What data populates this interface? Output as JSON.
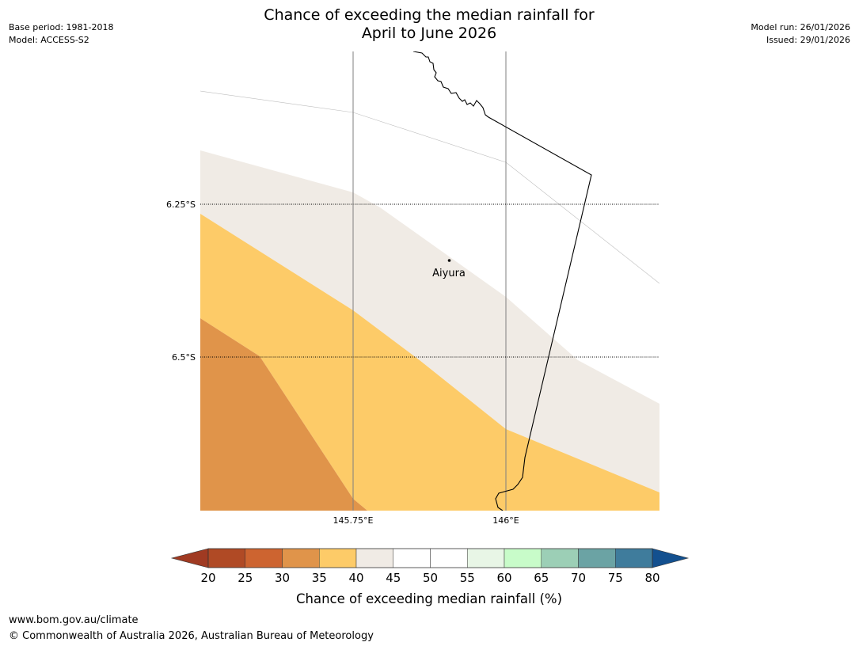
{
  "header": {
    "title_line1": "Chance of exceeding the median rainfall for",
    "title_line2": "April to June 2026",
    "base_period": "Base period: 1981-2018",
    "model": "Model: ACCESS-S2",
    "model_run": "Model run: 26/01/2026",
    "issued": "Issued: 29/01/2026"
  },
  "map": {
    "latitudes": [
      "6.25°S",
      "6.5°S"
    ],
    "longitudes": [
      "145.75°E",
      "146°E"
    ],
    "place": "Aiyura",
    "colors": {
      "band_30_35": "#e0944a",
      "band_35_40": "#fdcb68",
      "band_40_45": "#f0ebe5",
      "coast": "#000000",
      "grid": "#7f7f7f"
    }
  },
  "colorbar": {
    "label": "Chance of exceeding median rainfall (%)",
    "ticks": [
      "20",
      "25",
      "30",
      "35",
      "40",
      "45",
      "50",
      "55",
      "60",
      "65",
      "70",
      "75",
      "80"
    ],
    "under_color": "#a03a22",
    "over_color": "#13508f",
    "colors": [
      "#b04a25",
      "#cd6430",
      "#e0944a",
      "#fdcb68",
      "#f0ebe5",
      "#ffffff",
      "#ffffff",
      "#e8f6e6",
      "#c8fcc9",
      "#9ccfb6",
      "#6ba3a4",
      "#3f7c9c"
    ]
  },
  "footer": {
    "url": "www.bom.gov.au/climate",
    "copyright": "© Commonwealth of Australia 2026, Australian Bureau of Meteorology"
  }
}
